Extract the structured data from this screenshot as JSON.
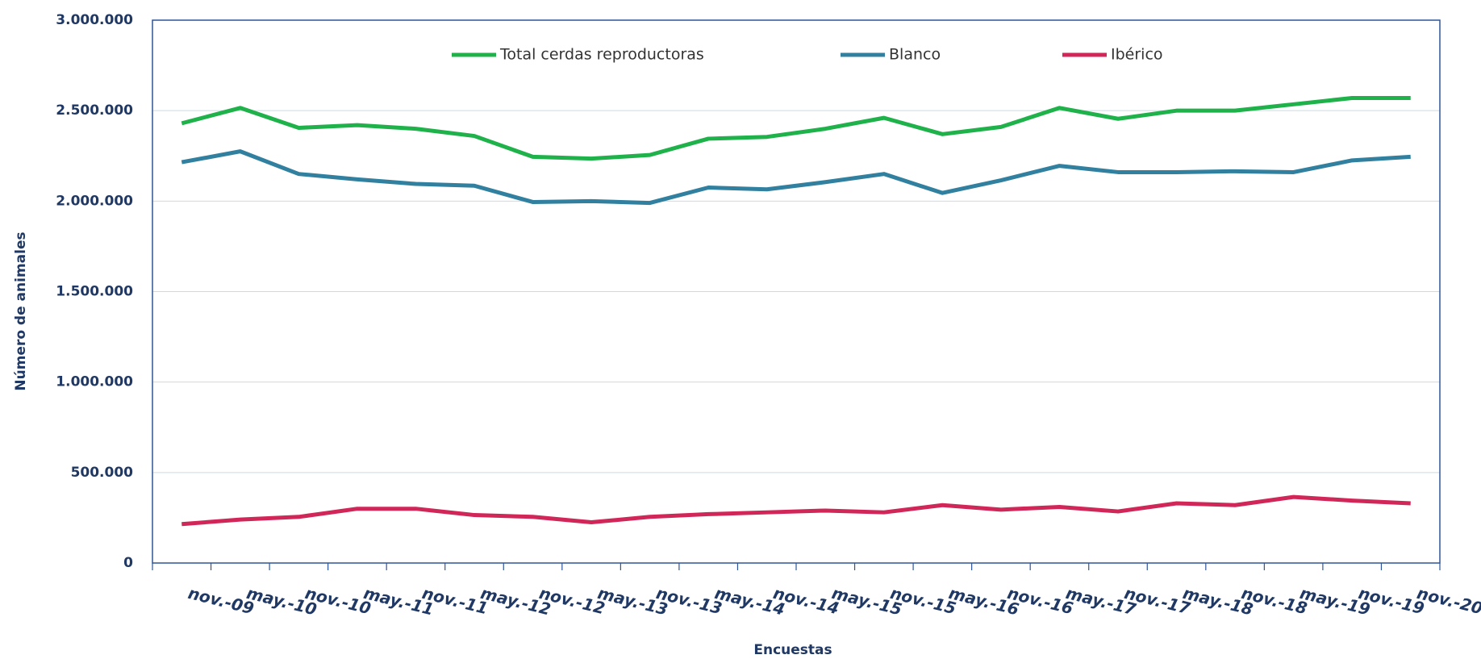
{
  "chart_data": {
    "type": "line",
    "y_label": "Número de animales",
    "x_label": "Encuestas",
    "categories": [
      "nov.-09",
      "may.-10",
      "nov.-10",
      "may.-11",
      "nov.-11",
      "may.-12",
      "nov.-12",
      "may.-13",
      "nov.-13",
      "may.-14",
      "nov.-14",
      "may.-15",
      "nov.-15",
      "may.-16",
      "nov.-16",
      "may.-17",
      "nov.-17",
      "may.-18",
      "nov.-18",
      "may.-19",
      "nov.-19",
      "nov.-20"
    ],
    "series": [
      {
        "name": "Total cerdas reproductoras",
        "color": "#1fb14a",
        "values": [
          2430000,
          2515000,
          2405000,
          2420000,
          2400000,
          2360000,
          2245000,
          2235000,
          2255000,
          2345000,
          2355000,
          2400000,
          2460000,
          2370000,
          2410000,
          2515000,
          2455000,
          2500000,
          2500000,
          2535000,
          2570000,
          2570000
        ]
      },
      {
        "name": "Blanco",
        "color": "#31809f",
        "values": [
          2215000,
          2275000,
          2150000,
          2120000,
          2095000,
          2085000,
          1995000,
          2000000,
          1990000,
          2075000,
          2065000,
          2105000,
          2150000,
          2045000,
          2115000,
          2195000,
          2160000,
          2160000,
          2165000,
          2160000,
          2225000,
          2245000
        ]
      },
      {
        "name": "Ibérico",
        "color": "#d02658",
        "values": [
          215000,
          240000,
          255000,
          300000,
          300000,
          265000,
          255000,
          225000,
          255000,
          270000,
          280000,
          290000,
          280000,
          320000,
          295000,
          310000,
          285000,
          330000,
          320000,
          365000,
          345000,
          330000
        ]
      }
    ],
    "ylim": [
      0,
      3000000
    ],
    "yticks": [
      0,
      {
        "value": 500000,
        "label": "500.000"
      },
      {
        "value": 1000000,
        "label": "1.000.000"
      },
      {
        "value": 1500000,
        "label": "1.500.000"
      },
      {
        "value": 2000000,
        "label": "2.000.000"
      },
      {
        "value": 2500000,
        "label": "2.500.000"
      },
      {
        "value": 3000000,
        "label": "3.000.000"
      }
    ],
    "grid": true,
    "legend": "top"
  }
}
